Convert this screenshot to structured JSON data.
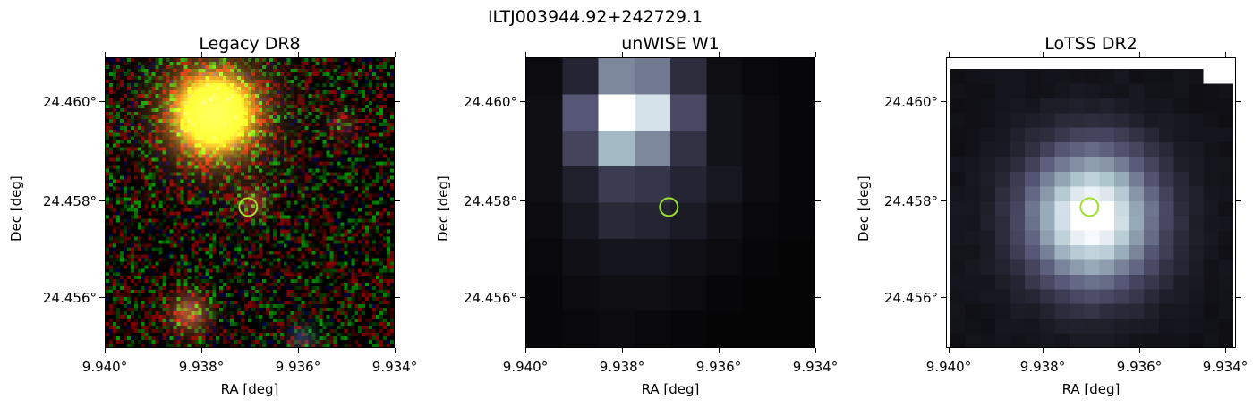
{
  "figure": {
    "suptitle": "ILTJ003944.92+242729.1"
  },
  "panels": [
    {
      "id": "legacy",
      "title": "Legacy DR8",
      "xlabel": "RA [deg]",
      "ylabel": "Dec [deg]",
      "xticks": [
        "9.940°",
        "9.938°",
        "9.936°",
        "9.934°"
      ],
      "yticks": [
        "24.460°",
        "24.458°",
        "24.456°"
      ],
      "image_type": "rgb-noise-cutout",
      "marker_color": "#9be22a"
    },
    {
      "id": "unwise",
      "title": "unWISE W1",
      "xlabel": "RA [deg]",
      "ylabel": "Dec [deg]",
      "xticks": [
        "9.940°",
        "9.938°",
        "9.936°",
        "9.934°"
      ],
      "yticks": [
        "24.460°",
        "24.458°",
        "24.456°"
      ],
      "image_type": "bone-colormap-pixels",
      "marker_color": "#9be22a"
    },
    {
      "id": "lotss",
      "title": "LoTSS DR2",
      "xlabel": "RA [deg]",
      "ylabel": "Dec [deg]",
      "xticks": [
        "9.940°",
        "9.938°",
        "9.936°",
        "9.934°"
      ],
      "yticks": [
        "24.460°",
        "24.458°",
        "24.456°"
      ],
      "image_type": "bone-colormap-pixels",
      "marker_color": "#9be22a"
    }
  ],
  "marker": {
    "ra": 9.93705,
    "dec": 24.45798
  },
  "axes": {
    "ra_range": [
      9.94,
      9.934
    ],
    "dec_range": [
      24.4551,
      24.461
    ]
  }
}
